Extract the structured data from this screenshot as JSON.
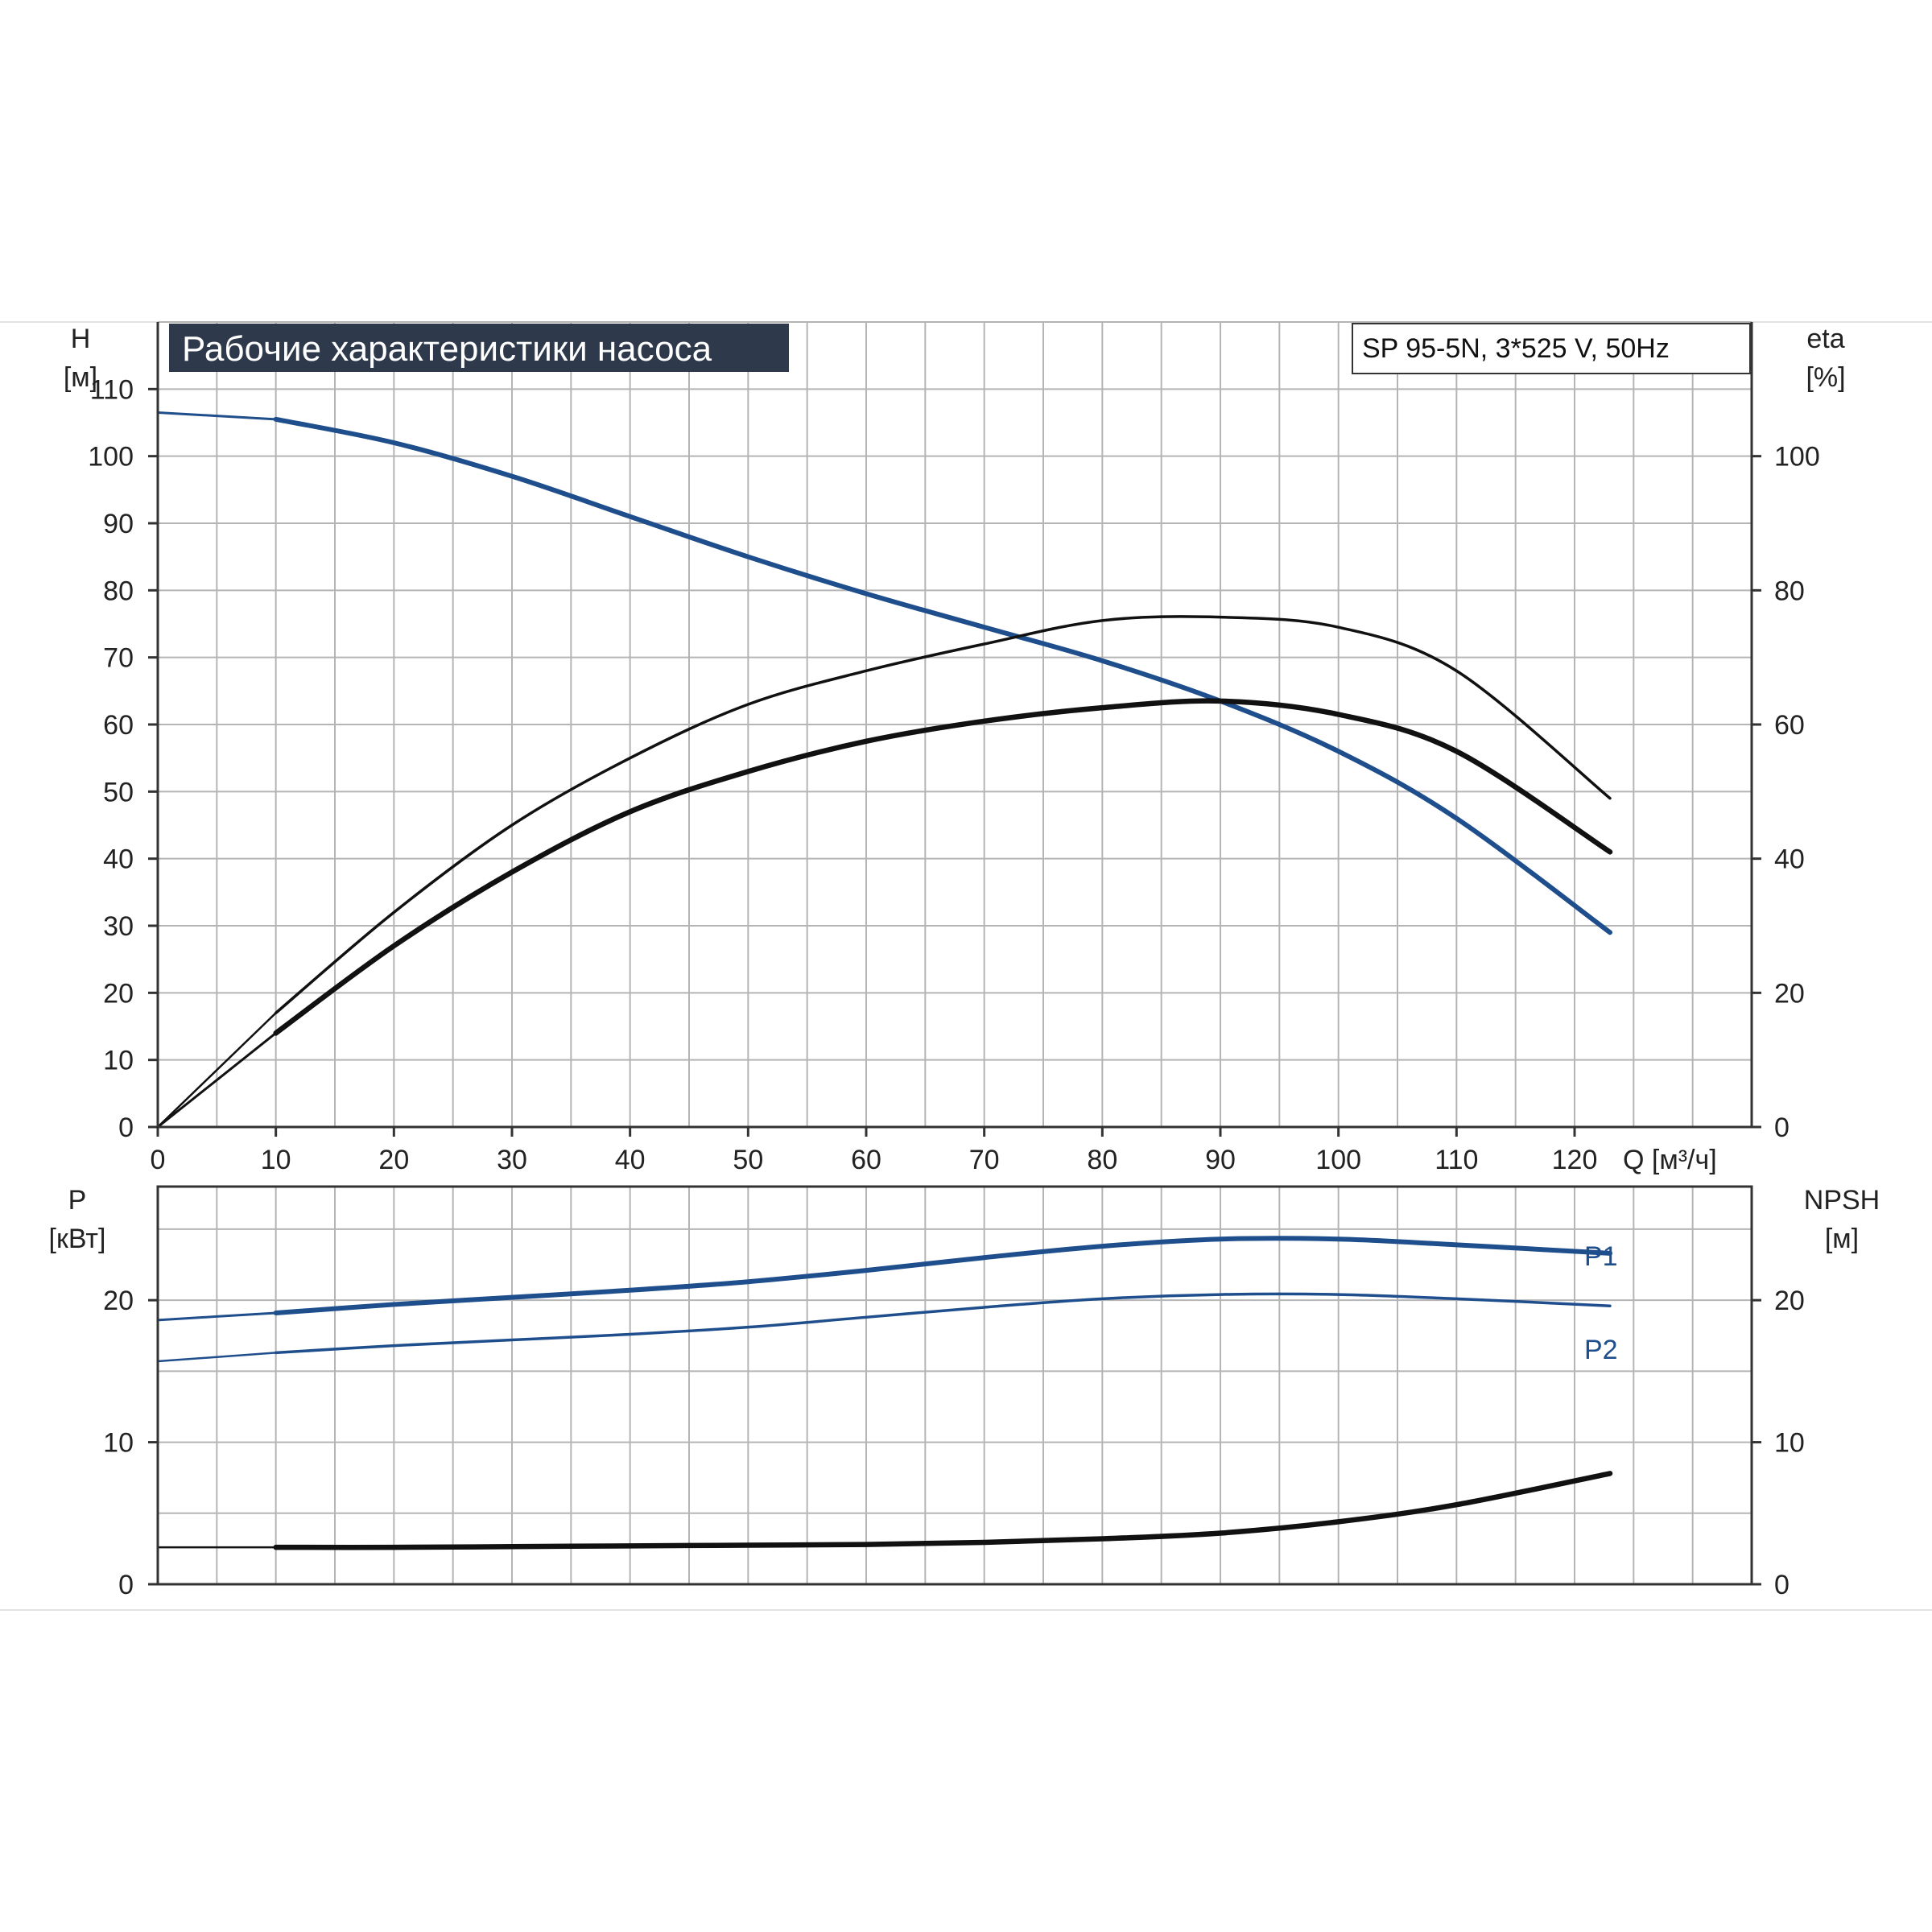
{
  "title": "Рабочие характеристики насоса",
  "model": "SP 95-5N, 3*525 V, 50Hz",
  "colors": {
    "head": "#1f4e8c",
    "power": "#1f4e8c",
    "eta": "#111111",
    "npsh": "#111111",
    "grid": "#b5b5b5",
    "title_bg": "#2e3a4c"
  },
  "top_chart": {
    "y_left_label_1": "H",
    "y_left_label_2": "[м]",
    "y_right_label_1": "eta",
    "y_right_label_2": "[%]",
    "x_label": "Q [м³/ч]",
    "x_ticks": [
      "0",
      "10",
      "20",
      "30",
      "40",
      "50",
      "60",
      "70",
      "80",
      "90",
      "100",
      "110",
      "120"
    ],
    "y_left_ticks": [
      "0",
      "10",
      "20",
      "30",
      "40",
      "50",
      "60",
      "70",
      "80",
      "90",
      "100",
      "110"
    ],
    "y_right_ticks": [
      "0",
      "20",
      "40",
      "60",
      "80",
      "100"
    ]
  },
  "bottom_chart": {
    "y_left_label_1": "P",
    "y_left_label_2": "[кВт]",
    "y_right_label_1": "NPSH",
    "y_right_label_2": "[м]",
    "y_left_ticks": [
      "0",
      "10",
      "20"
    ],
    "y_right_ticks": [
      "0",
      "10",
      "20"
    ],
    "p1_label": "P1",
    "p2_label": "P2"
  },
  "chart_data": {
    "type": "line",
    "title": "Рабочие характеристики насоса",
    "xlabel": "Q [м³/ч]",
    "xlim": [
      0,
      135
    ],
    "grid": true,
    "panels": [
      {
        "ylabel": "H [м]",
        "ylim": [
          0,
          120
        ],
        "y2label": "eta [%]",
        "y2lim": [
          0,
          120
        ],
        "series": [
          {
            "name": "H",
            "axis": "left",
            "x": [
              0,
              10,
              20,
              30,
              40,
              50,
              60,
              70,
              80,
              90,
              100,
              110,
              123
            ],
            "y": [
              106.5,
              105.5,
              102,
              97,
              91,
              85,
              79.5,
              74.5,
              69.5,
              63.5,
              56,
              46,
              29
            ]
          },
          {
            "name": "eta",
            "axis": "right",
            "x": [
              0,
              10,
              20,
              30,
              40,
              50,
              60,
              70,
              80,
              90,
              100,
              110,
              123
            ],
            "y": [
              0,
              17,
              32,
              45,
              55,
              63,
              68,
              72,
              75.5,
              76,
              74.5,
              68,
              49
            ]
          },
          {
            "name": "eta",
            "axis": "right",
            "x": [
              0,
              10,
              20,
              30,
              40,
              50,
              60,
              70,
              80,
              90,
              100,
              110,
              123
            ],
            "y": [
              0,
              14,
              27,
              38,
              47,
              53,
              57.5,
              60.5,
              62.5,
              63.5,
              61.5,
              56,
              41
            ]
          }
        ]
      },
      {
        "ylabel": "P [кВт]",
        "ylim": [
          0,
          28
        ],
        "y2label": "NPSH [м]",
        "y2lim": [
          0,
          28
        ],
        "series": [
          {
            "name": "P1",
            "axis": "left",
            "x": [
              0,
              10,
              20,
              30,
              40,
              50,
              60,
              70,
              80,
              90,
              100,
              110,
              123
            ],
            "y": [
              18.6,
              19.1,
              19.7,
              20.2,
              20.7,
              21.3,
              22.1,
              23.0,
              23.8,
              24.3,
              24.3,
              23.9,
              23.3
            ]
          },
          {
            "name": "P2",
            "axis": "left",
            "x": [
              0,
              10,
              20,
              30,
              40,
              50,
              60,
              70,
              80,
              90,
              100,
              110,
              123
            ],
            "y": [
              15.7,
              16.3,
              16.8,
              17.2,
              17.6,
              18.1,
              18.8,
              19.5,
              20.1,
              20.4,
              20.4,
              20.1,
              19.6
            ]
          },
          {
            "name": "NPSH",
            "axis": "right",
            "x": [
              0,
              10,
              20,
              30,
              40,
              50,
              60,
              70,
              80,
              90,
              100,
              110,
              123
            ],
            "y": [
              2.6,
              2.6,
              2.6,
              2.65,
              2.7,
              2.75,
              2.8,
              2.95,
              3.2,
              3.6,
              4.4,
              5.6,
              7.8
            ]
          }
        ]
      }
    ]
  }
}
